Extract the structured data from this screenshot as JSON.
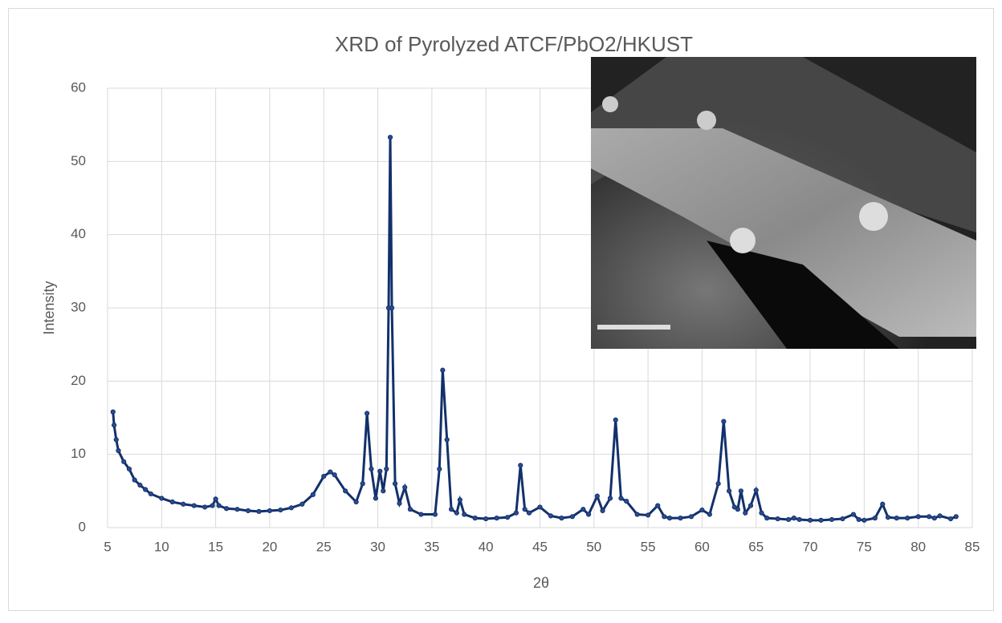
{
  "chart_data": {
    "type": "line",
    "title": "XRD of Pyrolyzed ATCF/PbO2/HKUST",
    "x_label": "2θ",
    "y_label": "Intensity",
    "x": [
      5.5,
      5.6,
      5.8,
      6,
      6.5,
      7,
      7.5,
      8,
      8.5,
      9,
      10,
      11,
      12,
      13,
      14,
      14.7,
      15,
      15.3,
      16,
      17,
      18,
      19,
      20,
      21,
      22,
      23,
      24,
      25,
      25.6,
      26,
      27,
      28,
      28.6,
      29,
      29.4,
      29.8,
      30.2,
      30.5,
      30.8,
      31,
      31.15,
      31.3,
      31.6,
      32,
      32.5,
      33,
      34,
      35.3,
      35.7,
      36,
      36.4,
      36.8,
      37.3,
      37.6,
      38,
      39,
      40,
      41,
      42,
      42.8,
      43.2,
      43.6,
      44,
      45,
      46,
      47,
      48,
      49,
      49.5,
      50.3,
      50.8,
      51.5,
      52,
      52.5,
      53,
      54,
      55,
      55.9,
      56.5,
      57,
      58,
      59,
      60,
      60.7,
      61.5,
      62,
      62.5,
      63,
      63.3,
      63.6,
      64,
      64.5,
      65,
      65.5,
      66,
      67,
      68,
      68.5,
      69,
      70,
      71,
      72,
      73,
      74,
      74.5,
      75,
      76,
      76.7,
      77.2,
      78,
      79,
      80,
      81,
      81.5,
      82,
      83,
      83.5
    ],
    "values": [
      15.8,
      14,
      12,
      10.5,
      9,
      8,
      6.5,
      5.8,
      5.2,
      4.6,
      4,
      3.5,
      3.2,
      3,
      2.8,
      3,
      3.9,
      3,
      2.6,
      2.5,
      2.3,
      2.2,
      2.3,
      2.4,
      2.7,
      3.2,
      4.5,
      7,
      7.6,
      7.2,
      5,
      3.5,
      6,
      15.6,
      8,
      4,
      7.7,
      5,
      8,
      30,
      53.3,
      30,
      6,
      3.3,
      5.5,
      2.5,
      1.8,
      1.8,
      8,
      21.5,
      12,
      2.5,
      2,
      3.8,
      1.8,
      1.3,
      1.2,
      1.3,
      1.4,
      2,
      8.5,
      2.5,
      2,
      2.8,
      1.6,
      1.3,
      1.5,
      2.5,
      1.8,
      4.3,
      2.3,
      4,
      14.7,
      4,
      3.6,
      1.8,
      1.7,
      3,
      1.5,
      1.3,
      1.3,
      1.5,
      2.4,
      1.8,
      6,
      14.5,
      5,
      2.8,
      2.5,
      5,
      2,
      3,
      5.1,
      2,
      1.3,
      1.2,
      1.1,
      1.3,
      1.1,
      1,
      1,
      1.1,
      1.2,
      1.8,
      1.1,
      1,
      1.3,
      3.2,
      1.4,
      1.3,
      1.3,
      1.5,
      1.5,
      1.3,
      1.6,
      1.2,
      1.5
    ],
    "color": "#13306b",
    "xlim": [
      5,
      85
    ],
    "xticks": [
      5,
      10,
      15,
      20,
      25,
      30,
      35,
      40,
      45,
      50,
      55,
      60,
      65,
      70,
      75,
      80,
      85
    ],
    "ylim": [
      0,
      60
    ],
    "yticks": [
      0,
      10,
      20,
      30,
      40,
      50,
      60
    ],
    "grid": true
  }
}
